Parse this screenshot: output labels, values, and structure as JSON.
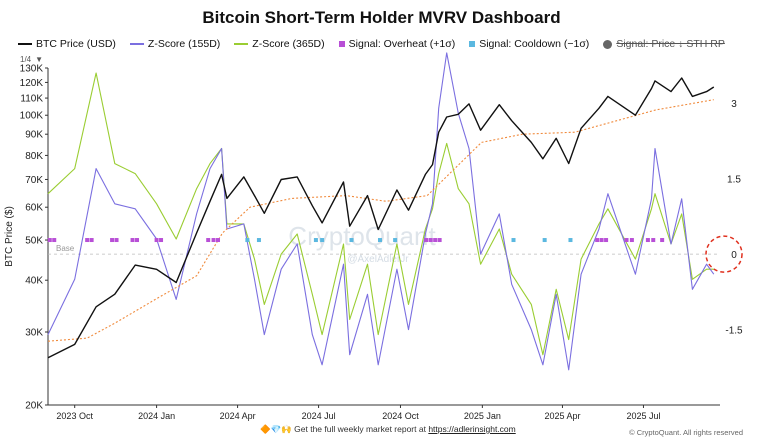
{
  "title": "Bitcoin Short-Term Holder MVRV Dashboard",
  "legend": {
    "price": "BTC Price (USD)",
    "z155": "Z-Score (155D)",
    "z365": "Z-Score (365D)",
    "overheat": "Signal: Overheat (+1σ)",
    "cooldown": "Signal: Cooldown (−1σ)",
    "sthrp": "Signal: Price ↓ STH RP"
  },
  "controls": {
    "zoom": "1/4",
    "arrow": "▼"
  },
  "footer": {
    "prefix": "Get the full weekly market report at",
    "link": "https://adlerinsight.com",
    "emoji": "🔶💎🙌"
  },
  "copyright": "© CryptoQuant. All rights reserved",
  "watermark": {
    "brand": "CryptoQuant",
    "handle": "@AxelAdlerJr"
  },
  "colors": {
    "price": "#111111",
    "z155": "#7b6fe0",
    "z365": "#9acd32",
    "sthrp": "#f08a3c",
    "overheat": "#b84fd6",
    "cooldown": "#5bb8e0",
    "target": "#e0301e"
  },
  "chart_data": {
    "type": "line",
    "ylabel": "BTC Price ($)",
    "x_ticks": [
      "2023 Oct",
      "2024 Jan",
      "2024 Apr",
      "2024 Jul",
      "2024 Oct",
      "2025 Jan",
      "2025 Apr",
      "2025 Jul"
    ],
    "left_axis": {
      "scale": "log",
      "ticks": [
        20000,
        30000,
        40000,
        50000,
        60000,
        70000,
        80000,
        90000,
        100000,
        110000,
        120000,
        130000
      ],
      "tick_labels": [
        "20K",
        "30K",
        "40K",
        "50K",
        "60K",
        "70K",
        "80K",
        "90K",
        "100K",
        "110K",
        "120K",
        "130K"
      ],
      "ylim": [
        20000,
        130000
      ]
    },
    "right_axis": {
      "ticks": [
        3,
        1.5,
        0,
        -1.5
      ],
      "tick_labels": [
        "3",
        "1.5",
        "0",
        "-1.5"
      ],
      "ylim": [
        -3,
        3.7
      ]
    },
    "baseline_label": "Base",
    "series": [
      {
        "name": "BTC Price (USD)",
        "axis": "left",
        "points": [
          [
            "2023-09-01",
            26000
          ],
          [
            "2023-10-01",
            28000
          ],
          [
            "2023-10-25",
            34500
          ],
          [
            "2023-11-15",
            37000
          ],
          [
            "2023-12-08",
            43500
          ],
          [
            "2024-01-01",
            42500
          ],
          [
            "2024-01-23",
            39500
          ],
          [
            "2024-02-15",
            52000
          ],
          [
            "2024-03-01",
            62000
          ],
          [
            "2024-03-14",
            72000
          ],
          [
            "2024-03-20",
            63000
          ],
          [
            "2024-04-08",
            71000
          ],
          [
            "2024-04-20",
            64000
          ],
          [
            "2024-05-01",
            58000
          ],
          [
            "2024-05-20",
            70000
          ],
          [
            "2024-06-07",
            71000
          ],
          [
            "2024-06-24",
            60500
          ],
          [
            "2024-07-05",
            55000
          ],
          [
            "2024-07-29",
            69000
          ],
          [
            "2024-08-05",
            54000
          ],
          [
            "2024-08-25",
            64000
          ],
          [
            "2024-09-06",
            53000
          ],
          [
            "2024-09-27",
            66000
          ],
          [
            "2024-10-10",
            59000
          ],
          [
            "2024-10-29",
            72000
          ],
          [
            "2024-11-06",
            76000
          ],
          [
            "2024-11-13",
            91000
          ],
          [
            "2024-11-22",
            99000
          ],
          [
            "2024-12-05",
            100500
          ],
          [
            "2024-12-17",
            106500
          ],
          [
            "2024-12-30",
            92000
          ],
          [
            "2025-01-20",
            106000
          ],
          [
            "2025-02-03",
            97000
          ],
          [
            "2025-02-25",
            86000
          ],
          [
            "2025-03-10",
            78500
          ],
          [
            "2025-03-25",
            88000
          ],
          [
            "2025-04-08",
            76500
          ],
          [
            "2025-04-22",
            93000
          ],
          [
            "2025-05-12",
            104000
          ],
          [
            "2025-05-22",
            111000
          ],
          [
            "2025-06-22",
            100000
          ],
          [
            "2025-07-10",
            116000
          ],
          [
            "2025-07-14",
            121000
          ],
          [
            "2025-08-01",
            114000
          ],
          [
            "2025-08-13",
            123000
          ],
          [
            "2025-08-25",
            111000
          ],
          [
            "2025-09-10",
            114000
          ],
          [
            "2025-09-18",
            117000
          ]
        ]
      },
      {
        "name": "STH Realized Price",
        "axis": "left",
        "points": [
          [
            "2023-09-01",
            28500
          ],
          [
            "2023-10-15",
            29000
          ],
          [
            "2023-11-15",
            31500
          ],
          [
            "2023-12-31",
            36000
          ],
          [
            "2024-02-15",
            41000
          ],
          [
            "2024-03-15",
            52000
          ],
          [
            "2024-04-15",
            60000
          ],
          [
            "2024-06-01",
            63000
          ],
          [
            "2024-08-01",
            64000
          ],
          [
            "2024-09-15",
            62000
          ],
          [
            "2024-10-31",
            64000
          ],
          [
            "2024-11-30",
            74000
          ],
          [
            "2024-12-31",
            86000
          ],
          [
            "2025-02-15",
            90000
          ],
          [
            "2025-04-15",
            91000
          ],
          [
            "2025-06-01",
            97000
          ],
          [
            "2025-07-15",
            103000
          ],
          [
            "2025-09-18",
            109000
          ]
        ]
      },
      {
        "name": "Z-Score (155D)",
        "axis": "right",
        "points": [
          [
            "2023-09-01",
            -1.6
          ],
          [
            "2023-10-01",
            -0.5
          ],
          [
            "2023-10-25",
            1.7
          ],
          [
            "2023-11-15",
            1.0
          ],
          [
            "2023-12-08",
            0.9
          ],
          [
            "2024-01-01",
            0.3
          ],
          [
            "2024-01-23",
            -0.9
          ],
          [
            "2024-02-15",
            0.8
          ],
          [
            "2024-03-01",
            1.7
          ],
          [
            "2024-03-14",
            2.1
          ],
          [
            "2024-03-20",
            0.5
          ],
          [
            "2024-04-08",
            0.6
          ],
          [
            "2024-04-20",
            -0.5
          ],
          [
            "2024-05-01",
            -1.6
          ],
          [
            "2024-05-20",
            -0.3
          ],
          [
            "2024-06-07",
            0.2
          ],
          [
            "2024-06-24",
            -1.6
          ],
          [
            "2024-07-05",
            -2.2
          ],
          [
            "2024-07-29",
            -0.2
          ],
          [
            "2024-08-05",
            -2.0
          ],
          [
            "2024-08-25",
            -0.8
          ],
          [
            "2024-09-06",
            -2.2
          ],
          [
            "2024-09-27",
            -0.3
          ],
          [
            "2024-10-10",
            -1.5
          ],
          [
            "2024-10-29",
            0.4
          ],
          [
            "2024-11-06",
            1.0
          ],
          [
            "2024-11-13",
            2.9
          ],
          [
            "2024-11-22",
            4.0
          ],
          [
            "2024-12-05",
            2.8
          ],
          [
            "2024-12-17",
            2.1
          ],
          [
            "2024-12-30",
            0.0
          ],
          [
            "2025-01-20",
            0.8
          ],
          [
            "2025-02-03",
            -0.6
          ],
          [
            "2025-02-25",
            -1.5
          ],
          [
            "2025-03-10",
            -2.2
          ],
          [
            "2025-03-25",
            -0.8
          ],
          [
            "2025-04-08",
            -2.3
          ],
          [
            "2025-04-22",
            -0.4
          ],
          [
            "2025-05-12",
            0.5
          ],
          [
            "2025-05-22",
            1.2
          ],
          [
            "2025-06-22",
            -0.4
          ],
          [
            "2025-07-10",
            1.1
          ],
          [
            "2025-07-14",
            2.1
          ],
          [
            "2025-08-01",
            0.2
          ],
          [
            "2025-08-13",
            1.1
          ],
          [
            "2025-08-25",
            -0.7
          ],
          [
            "2025-09-10",
            -0.2
          ],
          [
            "2025-09-18",
            -0.4
          ]
        ]
      },
      {
        "name": "Z-Score (365D)",
        "axis": "right",
        "points": [
          [
            "2023-09-01",
            1.2
          ],
          [
            "2023-10-01",
            1.7
          ],
          [
            "2023-10-25",
            3.6
          ],
          [
            "2023-11-15",
            1.8
          ],
          [
            "2023-12-08",
            1.6
          ],
          [
            "2024-01-01",
            1.0
          ],
          [
            "2024-01-23",
            0.3
          ],
          [
            "2024-02-15",
            1.3
          ],
          [
            "2024-03-01",
            1.8
          ],
          [
            "2024-03-14",
            2.1
          ],
          [
            "2024-03-20",
            0.6
          ],
          [
            "2024-04-08",
            0.6
          ],
          [
            "2024-04-20",
            -0.1
          ],
          [
            "2024-05-01",
            -1.0
          ],
          [
            "2024-05-20",
            0.0
          ],
          [
            "2024-06-07",
            0.4
          ],
          [
            "2024-06-24",
            -0.8
          ],
          [
            "2024-07-05",
            -1.6
          ],
          [
            "2024-07-29",
            0.2
          ],
          [
            "2024-08-05",
            -1.3
          ],
          [
            "2024-08-25",
            -0.2
          ],
          [
            "2024-09-06",
            -1.6
          ],
          [
            "2024-09-27",
            0.2
          ],
          [
            "2024-10-10",
            -1.0
          ],
          [
            "2024-10-29",
            0.5
          ],
          [
            "2024-11-06",
            0.9
          ],
          [
            "2024-11-13",
            1.6
          ],
          [
            "2024-11-22",
            2.2
          ],
          [
            "2024-12-05",
            1.3
          ],
          [
            "2024-12-17",
            1.0
          ],
          [
            "2024-12-30",
            -0.2
          ],
          [
            "2025-01-20",
            0.5
          ],
          [
            "2025-02-03",
            -0.4
          ],
          [
            "2025-02-25",
            -1.0
          ],
          [
            "2025-03-10",
            -2.0
          ],
          [
            "2025-03-25",
            -0.7
          ],
          [
            "2025-04-08",
            -1.7
          ],
          [
            "2025-04-22",
            -0.1
          ],
          [
            "2025-05-12",
            0.6
          ],
          [
            "2025-05-22",
            0.9
          ],
          [
            "2025-06-22",
            -0.1
          ],
          [
            "2025-07-10",
            0.9
          ],
          [
            "2025-07-14",
            1.2
          ],
          [
            "2025-08-01",
            0.2
          ],
          [
            "2025-08-13",
            0.8
          ],
          [
            "2025-08-25",
            -0.5
          ],
          [
            "2025-09-10",
            -0.3
          ],
          [
            "2025-09-18",
            -0.3
          ]
        ]
      }
    ],
    "signals": {
      "overheat": [
        "2023-09-03",
        "2023-09-08",
        "2023-10-15",
        "2023-10-20",
        "2023-11-12",
        "2023-11-17",
        "2023-12-05",
        "2023-12-10",
        "2024-01-01",
        "2024-01-06",
        "2024-02-28",
        "2024-03-05",
        "2024-03-10",
        "2024-10-30",
        "2024-11-04",
        "2024-11-09",
        "2024-11-14",
        "2025-05-10",
        "2025-05-15",
        "2025-05-20",
        "2025-06-12",
        "2025-06-18",
        "2025-07-06",
        "2025-07-12",
        "2025-07-22"
      ],
      "cooldown": [
        "2024-04-12",
        "2024-04-25",
        "2024-06-28",
        "2024-07-05",
        "2024-08-07",
        "2024-09-08",
        "2024-09-25",
        "2025-02-05",
        "2025-03-12",
        "2025-04-10"
      ]
    },
    "annotation": {
      "date": "2025-09-18",
      "value": 0
    }
  }
}
